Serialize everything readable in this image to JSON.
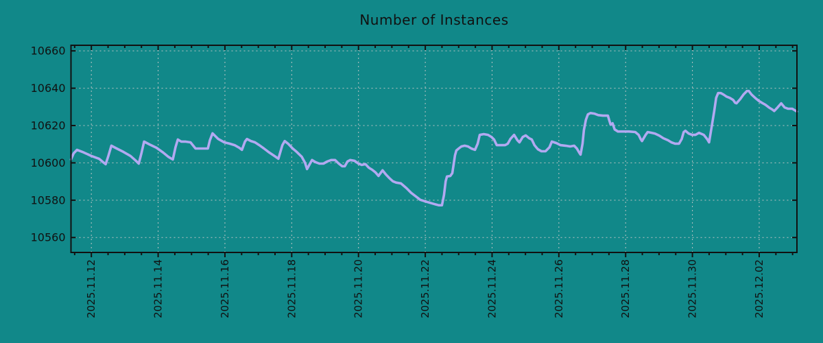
{
  "chart_data": {
    "type": "line",
    "title": "Number of Instances",
    "x_axis": {
      "unit": "days since 2025-11-11 00:00",
      "range": [
        0.39,
        22.13
      ],
      "major_ticks": {
        "days": [
          1,
          3,
          5,
          7,
          9,
          11,
          13,
          15,
          17,
          19,
          21
        ],
        "labels": [
          "2025.11.12",
          "2025.11.14",
          "2025.11.16",
          "2025.11.18",
          "2025.11.20",
          "2025.11.22",
          "2025.11.24",
          "2025.11.26",
          "2025.11.28",
          "2025.11.30",
          "2025.12.02"
        ]
      },
      "minor_tick_interval_days": 0.5,
      "grid": true
    },
    "y_axis": {
      "range": [
        10552,
        10663
      ],
      "ticks": [
        10560,
        10580,
        10600,
        10620,
        10640,
        10660
      ],
      "grid": true
    },
    "legend": "none",
    "series": [
      {
        "name": "instances",
        "points": [
          [
            0.39,
            10601.8
          ],
          [
            0.47,
            10605.1
          ],
          [
            0.57,
            10607.0
          ],
          [
            0.73,
            10605.9
          ],
          [
            1.0,
            10603.7
          ],
          [
            1.23,
            10602.2
          ],
          [
            1.35,
            10600.4
          ],
          [
            1.43,
            10599.3
          ],
          [
            1.51,
            10603.7
          ],
          [
            1.6,
            10609.2
          ],
          [
            1.76,
            10607.7
          ],
          [
            1.96,
            10605.9
          ],
          [
            2.17,
            10603.7
          ],
          [
            2.31,
            10601.5
          ],
          [
            2.42,
            10599.6
          ],
          [
            2.5,
            10605.1
          ],
          [
            2.58,
            10611.4
          ],
          [
            2.74,
            10609.9
          ],
          [
            2.95,
            10608.1
          ],
          [
            3.15,
            10605.5
          ],
          [
            3.3,
            10603.3
          ],
          [
            3.44,
            10601.8
          ],
          [
            3.52,
            10608.4
          ],
          [
            3.59,
            10612.5
          ],
          [
            3.69,
            10611.4
          ],
          [
            3.81,
            10611.4
          ],
          [
            3.97,
            10611.0
          ],
          [
            4.12,
            10607.7
          ],
          [
            4.32,
            10607.7
          ],
          [
            4.49,
            10607.7
          ],
          [
            4.55,
            10612.1
          ],
          [
            4.63,
            10615.8
          ],
          [
            4.8,
            10612.8
          ],
          [
            4.98,
            10611.0
          ],
          [
            5.14,
            10610.3
          ],
          [
            5.29,
            10609.5
          ],
          [
            5.43,
            10608.1
          ],
          [
            5.51,
            10607.0
          ],
          [
            5.6,
            10611.4
          ],
          [
            5.66,
            10612.8
          ],
          [
            5.78,
            10611.7
          ],
          [
            5.9,
            10611.0
          ],
          [
            6.03,
            10609.5
          ],
          [
            6.17,
            10607.7
          ],
          [
            6.33,
            10605.5
          ],
          [
            6.48,
            10603.7
          ],
          [
            6.6,
            10602.2
          ],
          [
            6.72,
            10609.5
          ],
          [
            6.79,
            10611.7
          ],
          [
            6.89,
            10610.3
          ],
          [
            7.03,
            10607.7
          ],
          [
            7.15,
            10605.9
          ],
          [
            7.3,
            10603.3
          ],
          [
            7.4,
            10600.0
          ],
          [
            7.46,
            10596.7
          ],
          [
            7.54,
            10599.3
          ],
          [
            7.61,
            10601.5
          ],
          [
            7.71,
            10600.4
          ],
          [
            7.83,
            10599.6
          ],
          [
            7.95,
            10599.6
          ],
          [
            8.06,
            10600.7
          ],
          [
            8.18,
            10601.5
          ],
          [
            8.3,
            10601.5
          ],
          [
            8.41,
            10599.6
          ],
          [
            8.51,
            10598.2
          ],
          [
            8.59,
            10598.2
          ],
          [
            8.67,
            10600.7
          ],
          [
            8.75,
            10601.5
          ],
          [
            8.88,
            10601.1
          ],
          [
            9.0,
            10599.6
          ],
          [
            9.1,
            10598.9
          ],
          [
            9.21,
            10599.3
          ],
          [
            9.31,
            10597.4
          ],
          [
            9.41,
            10596.3
          ],
          [
            9.51,
            10594.9
          ],
          [
            9.6,
            10593.0
          ],
          [
            9.66,
            10594.5
          ],
          [
            9.72,
            10596.0
          ],
          [
            9.82,
            10593.8
          ],
          [
            9.92,
            10591.9
          ],
          [
            10.03,
            10590.1
          ],
          [
            10.13,
            10589.4
          ],
          [
            10.27,
            10589.0
          ],
          [
            10.44,
            10586.4
          ],
          [
            10.58,
            10583.9
          ],
          [
            10.72,
            10582.0
          ],
          [
            10.85,
            10580.2
          ],
          [
            11.05,
            10579.1
          ],
          [
            11.26,
            10578.0
          ],
          [
            11.4,
            10577.3
          ],
          [
            11.5,
            10577.3
          ],
          [
            11.56,
            10582.8
          ],
          [
            11.61,
            10590.1
          ],
          [
            11.65,
            10592.7
          ],
          [
            11.75,
            10593.0
          ],
          [
            11.81,
            10594.5
          ],
          [
            11.85,
            10599.3
          ],
          [
            11.89,
            10604.0
          ],
          [
            11.93,
            10606.6
          ],
          [
            12.0,
            10607.7
          ],
          [
            12.08,
            10608.8
          ],
          [
            12.18,
            10609.2
          ],
          [
            12.28,
            10608.8
          ],
          [
            12.38,
            10607.7
          ],
          [
            12.49,
            10607.0
          ],
          [
            12.57,
            10610.3
          ],
          [
            12.63,
            10615.0
          ],
          [
            12.75,
            10615.4
          ],
          [
            12.88,
            10615.0
          ],
          [
            12.98,
            10613.9
          ],
          [
            13.06,
            10612.5
          ],
          [
            13.14,
            10609.5
          ],
          [
            13.27,
            10609.5
          ],
          [
            13.39,
            10609.5
          ],
          [
            13.47,
            10610.3
          ],
          [
            13.55,
            10612.8
          ],
          [
            13.66,
            10615.0
          ],
          [
            13.76,
            10612.1
          ],
          [
            13.82,
            10611.0
          ],
          [
            13.92,
            10613.9
          ],
          [
            14.01,
            10614.7
          ],
          [
            14.11,
            10613.2
          ],
          [
            14.19,
            10612.5
          ],
          [
            14.27,
            10609.5
          ],
          [
            14.37,
            10607.3
          ],
          [
            14.48,
            10606.2
          ],
          [
            14.6,
            10606.2
          ],
          [
            14.72,
            10608.4
          ],
          [
            14.79,
            10611.4
          ],
          [
            14.93,
            10610.6
          ],
          [
            15.05,
            10609.5
          ],
          [
            15.2,
            10609.2
          ],
          [
            15.34,
            10608.8
          ],
          [
            15.46,
            10609.2
          ],
          [
            15.54,
            10607.7
          ],
          [
            15.61,
            10605.5
          ],
          [
            15.65,
            10604.4
          ],
          [
            15.71,
            10610.3
          ],
          [
            15.75,
            10617.6
          ],
          [
            15.81,
            10623.1
          ],
          [
            15.87,
            10626.0
          ],
          [
            15.95,
            10626.7
          ],
          [
            16.06,
            10626.4
          ],
          [
            16.18,
            10625.6
          ],
          [
            16.32,
            10625.3
          ],
          [
            16.47,
            10625.3
          ],
          [
            16.51,
            10622.7
          ],
          [
            16.55,
            10620.5
          ],
          [
            16.61,
            10621.2
          ],
          [
            16.67,
            10617.9
          ],
          [
            16.77,
            10616.8
          ],
          [
            16.94,
            10616.8
          ],
          [
            17.1,
            10616.8
          ],
          [
            17.29,
            10616.5
          ],
          [
            17.39,
            10615.0
          ],
          [
            17.45,
            10612.8
          ],
          [
            17.49,
            10611.7
          ],
          [
            17.6,
            10615.0
          ],
          [
            17.66,
            10616.5
          ],
          [
            17.78,
            10616.1
          ],
          [
            17.88,
            10615.7
          ],
          [
            18.01,
            10614.6
          ],
          [
            18.13,
            10613.2
          ],
          [
            18.27,
            10612.1
          ],
          [
            18.37,
            10611.0
          ],
          [
            18.48,
            10610.3
          ],
          [
            18.6,
            10610.3
          ],
          [
            18.68,
            10612.8
          ],
          [
            18.74,
            10616.5
          ],
          [
            18.79,
            10617.2
          ],
          [
            18.89,
            10615.7
          ],
          [
            18.99,
            10615.0
          ],
          [
            19.09,
            10615.0
          ],
          [
            19.2,
            10616.1
          ],
          [
            19.34,
            10615.0
          ],
          [
            19.44,
            10612.8
          ],
          [
            19.5,
            10611.0
          ],
          [
            19.56,
            10617.6
          ],
          [
            19.65,
            10627.5
          ],
          [
            19.71,
            10634.8
          ],
          [
            19.77,
            10637.4
          ],
          [
            19.85,
            10637.4
          ],
          [
            19.93,
            10636.6
          ],
          [
            20.02,
            10635.5
          ],
          [
            20.12,
            10634.8
          ],
          [
            20.22,
            10633.7
          ],
          [
            20.28,
            10632.2
          ],
          [
            20.32,
            10631.9
          ],
          [
            20.43,
            10634.1
          ],
          [
            20.53,
            10636.6
          ],
          [
            20.63,
            10638.5
          ],
          [
            20.69,
            10638.5
          ],
          [
            20.77,
            10636.6
          ],
          [
            20.88,
            10634.8
          ],
          [
            20.98,
            10633.3
          ],
          [
            21.08,
            10632.2
          ],
          [
            21.19,
            10631.1
          ],
          [
            21.29,
            10629.7
          ],
          [
            21.39,
            10628.6
          ],
          [
            21.45,
            10627.8
          ],
          [
            21.55,
            10629.7
          ],
          [
            21.66,
            10631.9
          ],
          [
            21.76,
            10629.7
          ],
          [
            21.86,
            10629.0
          ],
          [
            21.99,
            10629.0
          ],
          [
            22.09,
            10627.9
          ],
          [
            22.13,
            10627.5
          ]
        ]
      }
    ],
    "colors": {
      "background": "#118889",
      "line": "#b2a9f1",
      "grid": "#bcc4c4",
      "border": "#111111",
      "text": "#111111"
    },
    "style": {
      "line_width": 3.6,
      "grid_dash": "2 4",
      "tick_label_font_px": 15,
      "y_label_font_px": 16,
      "x_labels_rotated_deg": -90
    }
  }
}
